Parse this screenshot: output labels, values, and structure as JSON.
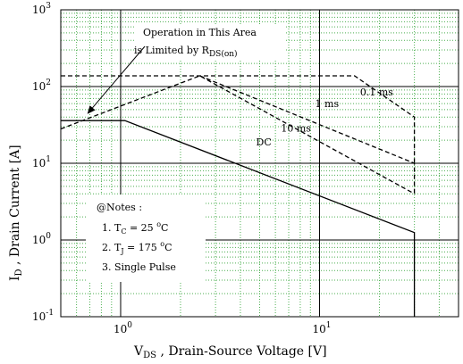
{
  "chart_data": {
    "type": "line",
    "title": "",
    "xlabel": "V_DS , Drain-Source Voltage [V]",
    "ylabel": "I_D , Drain Current [A]",
    "x_scale": "log",
    "y_scale": "log",
    "xlim": [
      0.5,
      50
    ],
    "ylim": [
      0.1,
      1000
    ],
    "grid": true,
    "legend": "none",
    "x_ticks": [
      {
        "value": 1,
        "base": "10",
        "exp": "0"
      },
      {
        "value": 10,
        "base": "10",
        "exp": "1"
      }
    ],
    "y_ticks": [
      {
        "value": 0.1,
        "base": "10",
        "exp": "-1"
      },
      {
        "value": 1,
        "base": "10",
        "exp": "0"
      },
      {
        "value": 10,
        "base": "10",
        "exp": "1"
      },
      {
        "value": 100,
        "base": "10",
        "exp": "2"
      },
      {
        "value": 1000,
        "base": "10",
        "exp": "3"
      }
    ],
    "series": [
      {
        "name": "DC",
        "style": "solid",
        "points": [
          [
            0.5,
            36
          ],
          [
            1.05,
            36
          ],
          [
            30,
            1.25
          ],
          [
            30,
            0.1
          ]
        ]
      },
      {
        "name": "10 ms",
        "style": "dashed",
        "points": [
          [
            0.5,
            28
          ],
          [
            2.5,
            138
          ],
          [
            30,
            4
          ]
        ]
      },
      {
        "name": "1 ms",
        "style": "dashed",
        "points": [
          [
            2.5,
            138
          ],
          [
            30,
            10
          ],
          [
            30,
            4
          ]
        ]
      },
      {
        "name": "0.1 ms",
        "style": "dashed",
        "points": [
          [
            0.5,
            138
          ],
          [
            15,
            138
          ],
          [
            30,
            40
          ],
          [
            30,
            10
          ]
        ]
      }
    ],
    "labels": [
      {
        "text": "DC",
        "x": 4.8,
        "y": 17
      },
      {
        "text": "10 ms",
        "x": 6.4,
        "y": 26
      },
      {
        "text": "1 ms",
        "x": 9.5,
        "y": 54
      },
      {
        "text": "0.1 ms",
        "x": 16,
        "y": 77
      }
    ],
    "annotation": {
      "line1": "Operation in This Area",
      "line2": "is Limited by R",
      "line2_sub": "DS(on)",
      "target": {
        "x": 0.68,
        "y": 44
      }
    },
    "notes": {
      "header": "@Notes :",
      "items": [
        {
          "prefix": "1. T",
          "sub": "C",
          "mid": " = 25 ",
          "sup": "o",
          "suffix": "C"
        },
        {
          "prefix": "2. T",
          "sub": "J",
          "mid": " = 175 ",
          "sup": "o",
          "suffix": "C"
        },
        {
          "prefix": "3. Single Pulse",
          "sub": "",
          "mid": "",
          "sup": "",
          "suffix": ""
        }
      ]
    }
  }
}
